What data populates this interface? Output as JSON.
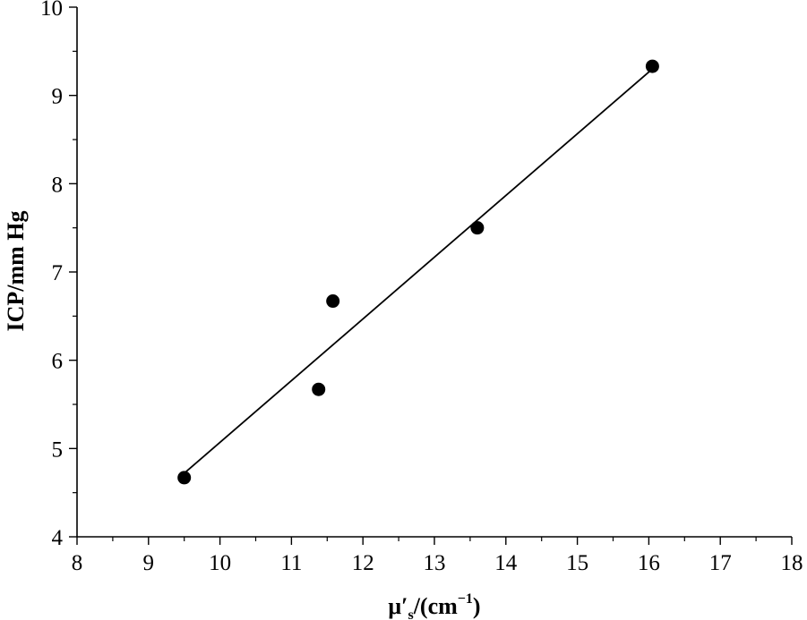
{
  "chart_data": {
    "type": "scatter",
    "xlabel": {
      "base": "μ",
      "prime": "′",
      "subscript": "s",
      "unit_open": "/(cm",
      "unit_sup": "−1",
      "unit_close": ")"
    },
    "ylabel": "ICP/mm Hg",
    "xlim": [
      8,
      18
    ],
    "ylim": [
      4,
      10
    ],
    "xticks": [
      8,
      9,
      10,
      11,
      12,
      13,
      14,
      15,
      16,
      17,
      18
    ],
    "yticks": [
      4,
      5,
      6,
      7,
      8,
      9,
      10
    ],
    "grid": false,
    "series": [
      {
        "points": [
          {
            "x": 9.5,
            "y": 4.67
          },
          {
            "x": 11.38,
            "y": 5.67
          },
          {
            "x": 11.58,
            "y": 6.67
          },
          {
            "x": 13.6,
            "y": 7.5
          },
          {
            "x": 16.05,
            "y": 9.33
          }
        ],
        "color": "#000000"
      }
    ],
    "fit_line": {
      "x0": 9.5,
      "y0": 4.72,
      "x1": 16.05,
      "y1": 9.3
    }
  }
}
